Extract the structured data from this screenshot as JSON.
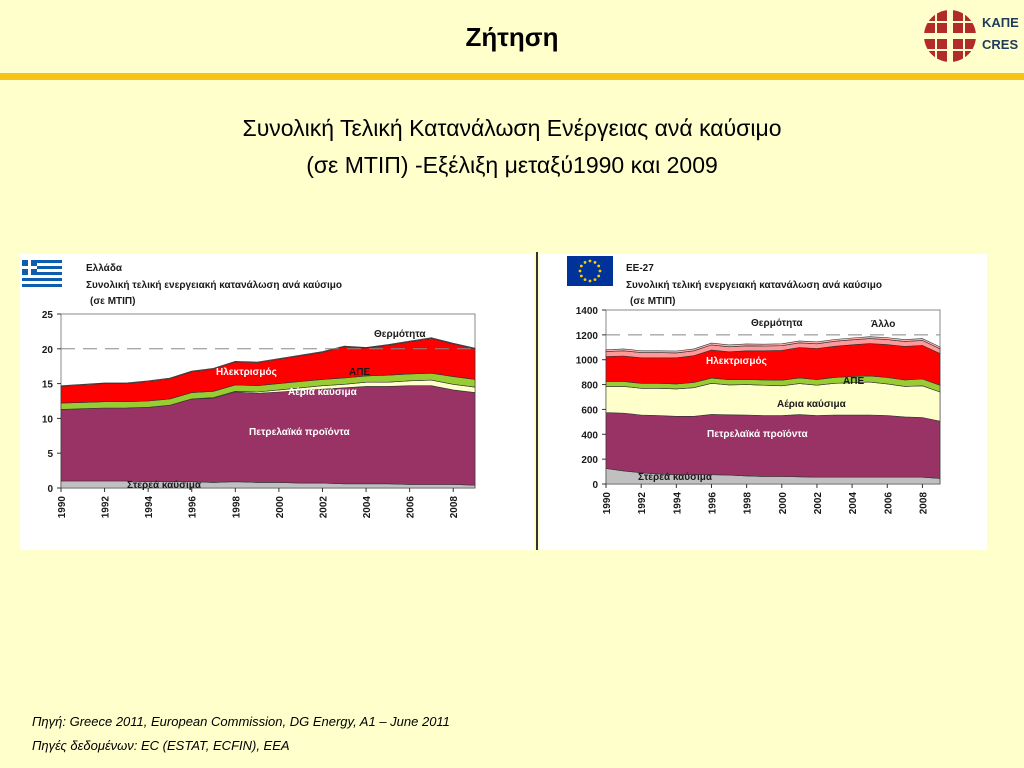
{
  "slide": {
    "title": "Ζήτηση",
    "subtitle_line1": "Συνολική Τελική Κατανάλωση Ενέργειας ανά καύσιμο",
    "subtitle_line2": "(σε ΜΤΙΠ) -Εξέλιξη μεταξύ1990 και 2009",
    "logo_line1": "ΚΑΠΕ",
    "logo_line2": "CRES",
    "source_line1": "Πηγή: Greece 2011, European Commission, DG Energy, A1 – June 2011",
    "source_line2": "Πηγές δεδομένων: EC (ESTAT, ECFIN), EEA"
  },
  "colors": {
    "background": "#ffffcc",
    "accent_rule": "#f6c419",
    "solid_fuels": "#c0c0c0",
    "petroleum": "#993366",
    "gas": "#ffffcc",
    "res": "#99cc33",
    "electricity": "#ff0000",
    "heat": "#ff9999",
    "other": "#ffb4b4"
  },
  "chart_data": [
    {
      "type": "area",
      "region": "Ελλάδα",
      "title_line1": "Ελλάδα",
      "title_line2": "Συνολική τελική ενεργειακή κατανάλωση ανά καύσιμο",
      "title_line3": "(σε ΜΤΙΠ)",
      "stacked": true,
      "x": [
        1990,
        1991,
        1992,
        1993,
        1994,
        1995,
        1996,
        1997,
        1998,
        1999,
        2000,
        2001,
        2002,
        2003,
        2004,
        2005,
        2006,
        2007,
        2008,
        2009
      ],
      "x_tick_labels": [
        "1990",
        "1992",
        "1994",
        "1996",
        "1998",
        "2000",
        "2002",
        "2004",
        "2006",
        "2008"
      ],
      "ylim": [
        0,
        25
      ],
      "y_ticks": [
        0,
        5,
        10,
        15,
        20,
        25
      ],
      "reference_line": 20,
      "series": [
        {
          "name": "Στερεά καύσιμα",
          "color": "#c0c0c0",
          "values": [
            1.0,
            1.0,
            1.0,
            1.0,
            0.9,
            0.9,
            0.9,
            0.8,
            0.9,
            0.8,
            0.8,
            0.7,
            0.7,
            0.6,
            0.6,
            0.6,
            0.5,
            0.5,
            0.5,
            0.4
          ]
        },
        {
          "name": "Πετρελαϊκά προϊόντα",
          "color": "#993366",
          "values": [
            10.3,
            10.4,
            10.5,
            10.5,
            10.7,
            11.0,
            11.9,
            12.1,
            12.9,
            12.8,
            13.0,
            13.3,
            13.5,
            13.8,
            14.0,
            14.0,
            14.2,
            14.2,
            13.6,
            13.3
          ]
        },
        {
          "name": "Αέρια καύσιμα",
          "color": "#ffffcc",
          "values": [
            0.0,
            0.0,
            0.0,
            0.0,
            0.0,
            0.0,
            0.0,
            0.1,
            0.1,
            0.2,
            0.3,
            0.4,
            0.5,
            0.5,
            0.6,
            0.6,
            0.7,
            0.8,
            0.8,
            0.8
          ]
        },
        {
          "name": "ΑΠΕ",
          "color": "#99cc33",
          "values": [
            0.9,
            0.9,
            0.9,
            0.9,
            0.9,
            0.9,
            0.9,
            0.9,
            0.9,
            0.9,
            0.9,
            0.9,
            0.9,
            0.9,
            0.9,
            1.0,
            1.0,
            1.0,
            1.1,
            1.1
          ]
        },
        {
          "name": "Ηλεκτρισμός",
          "color": "#ff0000",
          "values": [
            2.4,
            2.5,
            2.6,
            2.6,
            2.8,
            2.9,
            3.0,
            3.2,
            3.3,
            3.3,
            3.5,
            3.7,
            3.9,
            4.5,
            4.0,
            4.3,
            4.6,
            5.0,
            4.7,
            4.4
          ]
        },
        {
          "name": "Θερμότητα",
          "color": "#ff9999",
          "values": [
            0.1,
            0.1,
            0.1,
            0.1,
            0.1,
            0.1,
            0.1,
            0.1,
            0.1,
            0.1,
            0.1,
            0.1,
            0.1,
            0.1,
            0.1,
            0.1,
            0.1,
            0.1,
            0.1,
            0.1
          ]
        }
      ]
    },
    {
      "type": "area",
      "region": "ΕΕ-27",
      "title_line1": "ΕΕ-27",
      "title_line2": "Συνολική τελική ενεργειακή κατανάλωση ανά καύσιμο",
      "title_line3": "(σε ΜΤΙΠ)",
      "stacked": true,
      "x": [
        1990,
        1991,
        1992,
        1993,
        1994,
        1995,
        1996,
        1997,
        1998,
        1999,
        2000,
        2001,
        2002,
        2003,
        2004,
        2005,
        2006,
        2007,
        2008,
        2009
      ],
      "x_tick_labels": [
        "1990",
        "1992",
        "1994",
        "1996",
        "1998",
        "2000",
        "2002",
        "2004",
        "2006",
        "2008"
      ],
      "ylim": [
        0,
        1400
      ],
      "y_ticks": [
        0,
        200,
        400,
        600,
        800,
        1000,
        1200,
        1400
      ],
      "reference_line": 1200,
      "series": [
        {
          "name": "Στερεά καύσιμα",
          "color": "#c0c0c0",
          "values": [
            125,
            105,
            90,
            80,
            75,
            75,
            75,
            72,
            65,
            60,
            60,
            58,
            55,
            55,
            55,
            55,
            55,
            55,
            55,
            45
          ]
        },
        {
          "name": "Πετρελαϊκά προϊόντα",
          "color": "#993366",
          "values": [
            450,
            465,
            465,
            470,
            470,
            470,
            485,
            485,
            490,
            490,
            490,
            500,
            495,
            500,
            500,
            500,
            495,
            485,
            480,
            460
          ]
        },
        {
          "name": "Αέρια καύσιμα",
          "color": "#ffffcc",
          "values": [
            210,
            215,
            215,
            220,
            220,
            230,
            250,
            240,
            245,
            245,
            240,
            250,
            245,
            255,
            260,
            265,
            255,
            245,
            255,
            235
          ]
        },
        {
          "name": "ΑΠΕ",
          "color": "#99cc33",
          "values": [
            40,
            40,
            40,
            40,
            40,
            42,
            42,
            42,
            42,
            42,
            45,
            45,
            45,
            48,
            50,
            50,
            52,
            52,
            55,
            55
          ]
        },
        {
          "name": "Ηλεκτρισμός",
          "color": "#ff0000",
          "values": [
            200,
            205,
            205,
            205,
            210,
            215,
            225,
            225,
            230,
            235,
            240,
            245,
            250,
            250,
            255,
            260,
            265,
            270,
            270,
            255
          ]
        },
        {
          "name": "Θερμότητα",
          "color": "#ff9999",
          "values": [
            40,
            42,
            42,
            42,
            40,
            40,
            42,
            40,
            40,
            38,
            38,
            38,
            38,
            40,
            40,
            40,
            40,
            40,
            40,
            38
          ]
        },
        {
          "name": "Άλλο",
          "color": "#ffb4b4",
          "values": [
            15,
            15,
            15,
            15,
            15,
            15,
            15,
            15,
            15,
            15,
            15,
            15,
            15,
            15,
            15,
            15,
            15,
            15,
            15,
            15
          ]
        }
      ]
    }
  ]
}
